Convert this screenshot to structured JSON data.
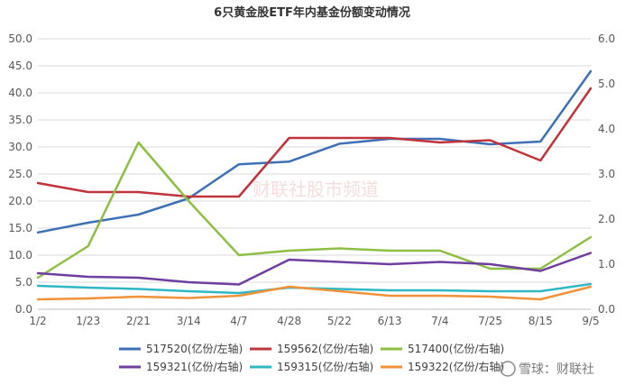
{
  "chart_data": {
    "type": "line",
    "title": "6只黄金股ETF年内基金份额变动情况",
    "x_labels": [
      "1/2",
      "1/23",
      "2/21",
      "3/14",
      "4/7",
      "4/28",
      "5/22",
      "6/13",
      "7/4",
      "7/25",
      "8/15",
      "9/5"
    ],
    "y_left": {
      "min": 0,
      "max": 50,
      "ticks": [
        "0.0",
        "5.0",
        "10.0",
        "15.0",
        "20.0",
        "25.0",
        "30.0",
        "35.0",
        "40.0",
        "45.0",
        "50.0"
      ]
    },
    "y_right": {
      "min": 0,
      "max": 6,
      "ticks": [
        "0.0",
        "1.0",
        "2.0",
        "3.0",
        "4.0",
        "5.0",
        "6.0"
      ]
    },
    "grid": true,
    "legend_position": "bottom",
    "series": [
      {
        "name": "517520(亿份/左轴)",
        "axis": "left",
        "color": "#3f6fb5",
        "values": [
          14.2,
          16.0,
          17.5,
          20.5,
          26.8,
          27.3,
          30.6,
          31.5,
          31.5,
          30.5,
          31.0,
          44.0
        ]
      },
      {
        "name": "159562(亿份/右轴)",
        "axis": "right",
        "color": "#c0343c",
        "values": [
          2.8,
          2.6,
          2.6,
          2.5,
          2.5,
          3.8,
          3.8,
          3.8,
          3.7,
          3.75,
          3.3,
          4.9
        ]
      },
      {
        "name": "517400(亿份/右轴)",
        "axis": "right",
        "color": "#8fbe45",
        "values": [
          0.7,
          1.4,
          3.7,
          2.4,
          1.2,
          1.3,
          1.35,
          1.3,
          1.3,
          0.9,
          0.9,
          1.6
        ]
      },
      {
        "name": "159321(亿份/右轴)",
        "axis": "right",
        "color": "#6f3fa0",
        "values": [
          0.8,
          0.72,
          0.7,
          0.6,
          0.55,
          1.1,
          1.05,
          1.0,
          1.05,
          1.0,
          0.85,
          1.25
        ]
      },
      {
        "name": "159315(亿份/右轴)",
        "axis": "right",
        "color": "#2fb8c4",
        "values": [
          0.52,
          0.48,
          0.45,
          0.4,
          0.36,
          0.48,
          0.45,
          0.42,
          0.42,
          0.4,
          0.4,
          0.56
        ]
      },
      {
        "name": "159322(亿份/右轴)",
        "axis": "right",
        "color": "#f0923a",
        "values": [
          0.22,
          0.24,
          0.28,
          0.25,
          0.3,
          0.5,
          0.4,
          0.3,
          0.3,
          0.28,
          0.22,
          0.5
        ]
      }
    ]
  },
  "watermark": "财联社股市频道",
  "logo": {
    "text": "雪球：财联社",
    "icon": "snowball-icon"
  }
}
